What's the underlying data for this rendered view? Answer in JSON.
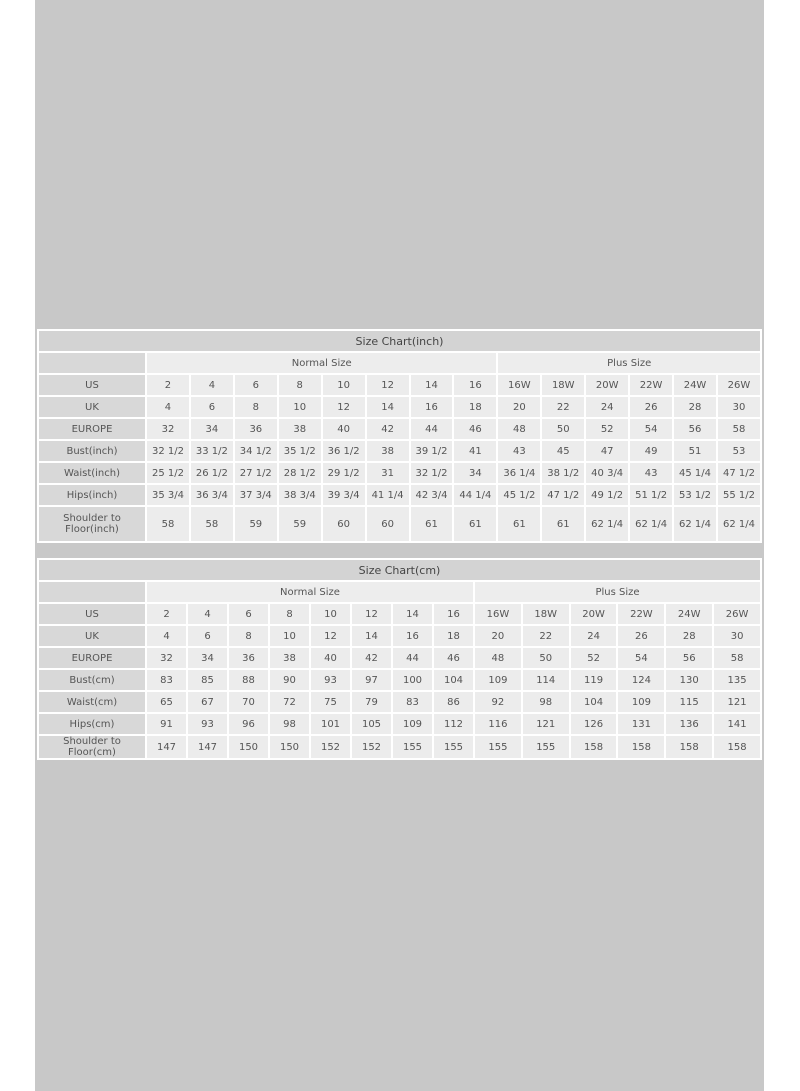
{
  "inch_chart": {
    "title": "Size Chart(inch)",
    "groups": [
      "Normal Size",
      "Plus Size"
    ],
    "rows": [
      {
        "label": "US",
        "values": [
          "2",
          "4",
          "6",
          "8",
          "10",
          "12",
          "14",
          "16",
          "16W",
          "18W",
          "20W",
          "22W",
          "24W",
          "26W"
        ]
      },
      {
        "label": "UK",
        "values": [
          "4",
          "6",
          "8",
          "10",
          "12",
          "14",
          "16",
          "18",
          "20",
          "22",
          "24",
          "26",
          "28",
          "30"
        ]
      },
      {
        "label": "EUROPE",
        "values": [
          "32",
          "34",
          "36",
          "38",
          "40",
          "42",
          "44",
          "46",
          "48",
          "50",
          "52",
          "54",
          "56",
          "58"
        ]
      },
      {
        "label": "Bust(inch)",
        "values": [
          "32 1/2",
          "33 1/2",
          "34 1/2",
          "35 1/2",
          "36 1/2",
          "38",
          "39 1/2",
          "41",
          "43",
          "45",
          "47",
          "49",
          "51",
          "53"
        ]
      },
      {
        "label": "Waist(inch)",
        "values": [
          "25 1/2",
          "26 1/2",
          "27 1/2",
          "28 1/2",
          "29 1/2",
          "31",
          "32 1/2",
          "34",
          "36 1/4",
          "38 1/2",
          "40 3/4",
          "43",
          "45 1/4",
          "47 1/2"
        ]
      },
      {
        "label": "Hips(inch)",
        "values": [
          "35 3/4",
          "36 3/4",
          "37 3/4",
          "38 3/4",
          "39 3/4",
          "41 1/4",
          "42 3/4",
          "44 1/4",
          "45 1/2",
          "47 1/2",
          "49 1/2",
          "51 1/2",
          "53 1/2",
          "55 1/2"
        ]
      },
      {
        "label": "Shoulder to Floor(inch)",
        "values": [
          "58",
          "58",
          "59",
          "59",
          "60",
          "60",
          "61",
          "61",
          "61",
          "61",
          "62 1/4",
          "62 1/4",
          "62 1/4",
          "62 1/4"
        ]
      }
    ]
  },
  "cm_chart": {
    "title": "Size Chart(cm)",
    "groups": [
      "Normal Size",
      "Plus Size"
    ],
    "rows": [
      {
        "label": "US",
        "values": [
          "2",
          "4",
          "6",
          "8",
          "10",
          "12",
          "14",
          "16",
          "16W",
          "18W",
          "20W",
          "22W",
          "24W",
          "26W"
        ]
      },
      {
        "label": "UK",
        "values": [
          "4",
          "6",
          "8",
          "10",
          "12",
          "14",
          "16",
          "18",
          "20",
          "22",
          "24",
          "26",
          "28",
          "30"
        ]
      },
      {
        "label": "EUROPE",
        "values": [
          "32",
          "34",
          "36",
          "38",
          "40",
          "42",
          "44",
          "46",
          "48",
          "50",
          "52",
          "54",
          "56",
          "58"
        ]
      },
      {
        "label": "Bust(cm)",
        "values": [
          "83",
          "85",
          "88",
          "90",
          "93",
          "97",
          "100",
          "104",
          "109",
          "114",
          "119",
          "124",
          "130",
          "135"
        ]
      },
      {
        "label": "Waist(cm)",
        "values": [
          "65",
          "67",
          "70",
          "72",
          "75",
          "79",
          "83",
          "86",
          "92",
          "98",
          "104",
          "109",
          "115",
          "121"
        ]
      },
      {
        "label": "Hips(cm)",
        "values": [
          "91",
          "93",
          "96",
          "98",
          "101",
          "105",
          "109",
          "112",
          "116",
          "121",
          "126",
          "131",
          "136",
          "141"
        ]
      },
      {
        "label": "Shoulder to Floor(cm)",
        "values": [
          "147",
          "147",
          "150",
          "150",
          "152",
          "152",
          "155",
          "155",
          "155",
          "155",
          "158",
          "158",
          "158",
          "158"
        ]
      }
    ]
  }
}
